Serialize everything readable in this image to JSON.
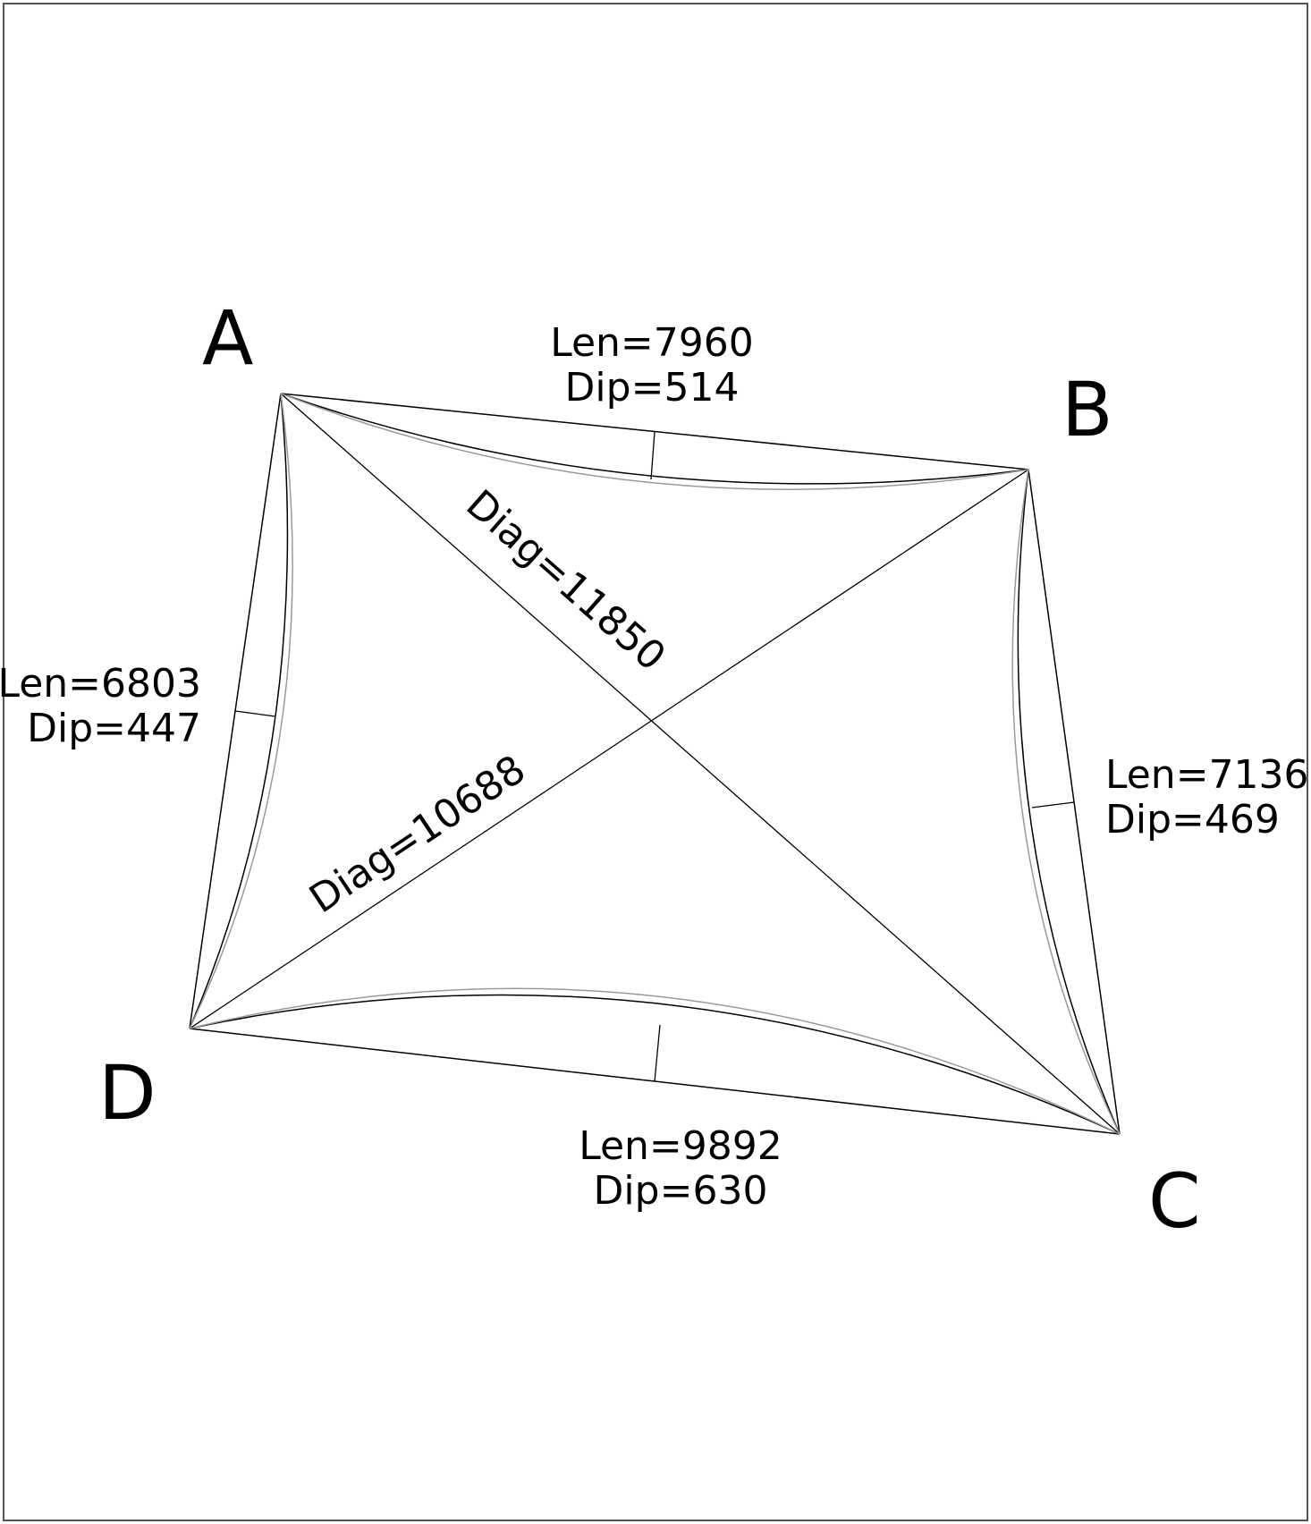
{
  "vertices": {
    "a": "A",
    "b": "B",
    "c": "C",
    "d": "D"
  },
  "edges": {
    "ab": {
      "len": "Len=7960",
      "dip": "Dip=514"
    },
    "bc": {
      "len": "Len=7136",
      "dip": "Dip=469"
    },
    "cd": {
      "len": "Len=9892",
      "dip": "Dip=630"
    },
    "da": {
      "len": "Len=6803",
      "dip": "Dip=447"
    }
  },
  "diagonals": {
    "ac": "Diag=11850",
    "bd": "Diag=10688"
  }
}
